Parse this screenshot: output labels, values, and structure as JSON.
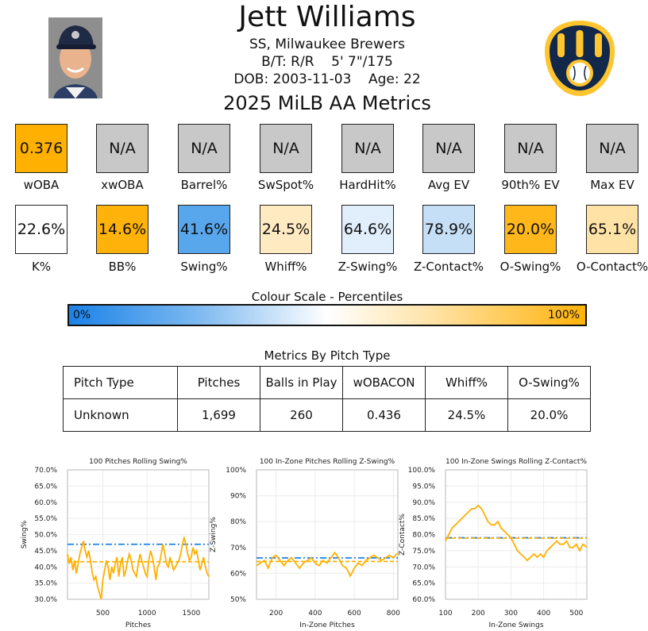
{
  "player": {
    "name": "Jett Williams",
    "position_team": "SS, Milwaukee Brewers",
    "bats_throws": "B/T: R/R    5' 7\"/175",
    "dob_age": "DOB: 2003-11-03    Age: 22",
    "season_title": "2025 MiLB AA Metrics"
  },
  "colors": {
    "na": "#c8c8c8",
    "high": "#ffb000",
    "blue": "#1c82e8",
    "orange": "#ffb000",
    "logo_navy": "#12284b",
    "logo_gold": "#ffc52f"
  },
  "metrics_row1": [
    {
      "label": "wOBA",
      "value": "0.376",
      "color": "#ffb000"
    },
    {
      "label": "xwOBA",
      "value": "N/A",
      "color": "#c8c8c8"
    },
    {
      "label": "Barrel%",
      "value": "N/A",
      "color": "#c8c8c8"
    },
    {
      "label": "SwSpot%",
      "value": "N/A",
      "color": "#c8c8c8"
    },
    {
      "label": "HardHit%",
      "value": "N/A",
      "color": "#c8c8c8"
    },
    {
      "label": "Avg EV",
      "value": "N/A",
      "color": "#c8c8c8"
    },
    {
      "label": "90th% EV",
      "value": "N/A",
      "color": "#c8c8c8"
    },
    {
      "label": "Max EV",
      "value": "N/A",
      "color": "#c8c8c8"
    }
  ],
  "metrics_row2": [
    {
      "label": "K%",
      "value": "22.6%",
      "color": "#ffffff"
    },
    {
      "label": "BB%",
      "value": "14.6%",
      "color": "#ffb20a"
    },
    {
      "label": "Swing%",
      "value": "41.6%",
      "color": "#58a6ec"
    },
    {
      "label": "Whiff%",
      "value": "24.5%",
      "color": "#ffeac2"
    },
    {
      "label": "Z-Swing%",
      "value": "64.6%",
      "color": "#e1eefb"
    },
    {
      "label": "Z-Contact%",
      "value": "78.9%",
      "color": "#c5dff6"
    },
    {
      "label": "O-Swing%",
      "value": "20.0%",
      "color": "#ffb719"
    },
    {
      "label": "O-Contact%",
      "value": "65.1%",
      "color": "#ffe3a6"
    }
  ],
  "colour_scale": {
    "title": "Colour Scale - Percentiles",
    "low": "0%",
    "high": "100%"
  },
  "pitch_table": {
    "title": "Metrics By Pitch Type",
    "headers": [
      "Pitch Type",
      "Pitches",
      "Balls in Play",
      "wOBACON",
      "Whiff%",
      "O-Swing%"
    ],
    "rows": [
      [
        "Unknown",
        "1,699",
        "260",
        "0.436",
        "24.5%",
        "20.0%"
      ]
    ]
  },
  "chart_data": [
    {
      "type": "line",
      "title": "100 Pitches Rolling Swing%",
      "xlabel": "Pitches",
      "ylabel": "Swing%",
      "xlim": [
        100,
        1699
      ],
      "ylim": [
        30,
        70
      ],
      "xticks": [
        500,
        1000,
        1500
      ],
      "xtick_labels": [
        "500",
        "1000",
        "1500"
      ],
      "yticks": [
        30,
        35,
        40,
        45,
        50,
        55,
        60,
        65,
        70
      ],
      "ytick_labels": [
        "30.0%",
        "35.0%",
        "40.0%",
        "45.0%",
        "50.0%",
        "55.0%",
        "60.0%",
        "65.0%",
        "70.0%"
      ],
      "league_avg": 47.0,
      "player_avg": 41.6,
      "x": [
        100,
        120,
        140,
        160,
        180,
        200,
        220,
        240,
        260,
        280,
        300,
        320,
        340,
        360,
        380,
        400,
        420,
        440,
        460,
        480,
        500,
        520,
        540,
        560,
        580,
        600,
        620,
        640,
        660,
        680,
        700,
        720,
        740,
        760,
        780,
        800,
        820,
        840,
        860,
        880,
        900,
        920,
        940,
        960,
        980,
        1000,
        1020,
        1040,
        1060,
        1080,
        1100,
        1120,
        1140,
        1160,
        1180,
        1200,
        1220,
        1240,
        1260,
        1280,
        1300,
        1320,
        1340,
        1360,
        1380,
        1400,
        1420,
        1440,
        1460,
        1480,
        1500,
        1520,
        1540,
        1560,
        1580,
        1600,
        1620,
        1640,
        1660,
        1680,
        1699
      ],
      "y": [
        44,
        41,
        43,
        39,
        42,
        38,
        41,
        44,
        46,
        48,
        45,
        43,
        45,
        42,
        38,
        36,
        37,
        34,
        32,
        30,
        36,
        39,
        42,
        40,
        36,
        40,
        38,
        41,
        43,
        37,
        41,
        43,
        37,
        39,
        42,
        44,
        42,
        39,
        38,
        37,
        41,
        44,
        42,
        40,
        38,
        37,
        42,
        45,
        43,
        40,
        36,
        40,
        41,
        44,
        47,
        44,
        41,
        40,
        43,
        41,
        39,
        40,
        41,
        42,
        44,
        47,
        49,
        47,
        44,
        42,
        43,
        46,
        44,
        45,
        42,
        39,
        41,
        43,
        40,
        38,
        37
      ]
    },
    {
      "type": "line",
      "title": "100 In-Zone Pitches Rolling Z-Swing%",
      "xlabel": "In-Zone Pitches",
      "ylabel": "Z-Swing%",
      "xlim": [
        100,
        823
      ],
      "ylim": [
        50,
        100
      ],
      "xticks": [
        200,
        400,
        600,
        800
      ],
      "xtick_labels": [
        "200",
        "400",
        "600",
        "800"
      ],
      "yticks": [
        50,
        60,
        70,
        80,
        90,
        100
      ],
      "ytick_labels": [
        "50%",
        "60%",
        "70%",
        "80%",
        "90%",
        "100%"
      ],
      "league_avg": 66.0,
      "player_avg": 64.6,
      "x": [
        100,
        120,
        140,
        160,
        180,
        200,
        220,
        240,
        260,
        280,
        300,
        320,
        340,
        360,
        380,
        400,
        420,
        440,
        460,
        480,
        500,
        520,
        540,
        560,
        580,
        600,
        620,
        640,
        660,
        680,
        700,
        720,
        740,
        760,
        780,
        800,
        823
      ],
      "y": [
        63,
        64,
        65,
        62,
        66,
        67,
        65,
        63,
        65,
        66,
        64,
        62,
        64,
        65,
        66,
        64,
        63,
        65,
        64,
        66,
        68,
        66,
        63,
        62,
        59,
        62,
        64,
        63,
        65,
        66,
        67,
        66,
        65,
        66,
        67,
        66,
        68
      ]
    },
    {
      "type": "line",
      "title": "100 In-Zone Swings Rolling Z-Contact%",
      "xlabel": "In-Zone Swings",
      "ylabel": "Z-Contact%",
      "xlim": [
        100,
        532
      ],
      "ylim": [
        60,
        100
      ],
      "xticks": [
        100,
        200,
        300,
        400,
        500
      ],
      "xtick_labels": [
        "100",
        "200",
        "300",
        "400",
        "500"
      ],
      "yticks": [
        60,
        65,
        70,
        75,
        80,
        85,
        90,
        95,
        100
      ],
      "ytick_labels": [
        "60.0%",
        "65.0%",
        "70.0%",
        "75.0%",
        "80.0%",
        "85.0%",
        "90.0%",
        "95.0%",
        "100.0%"
      ],
      "league_avg": 79.0,
      "player_avg": 78.9,
      "x": [
        100,
        110,
        120,
        130,
        140,
        150,
        160,
        170,
        180,
        190,
        200,
        210,
        220,
        230,
        240,
        250,
        260,
        270,
        280,
        290,
        300,
        310,
        320,
        330,
        340,
        350,
        360,
        370,
        380,
        390,
        400,
        410,
        420,
        430,
        440,
        450,
        460,
        470,
        480,
        490,
        500,
        510,
        520,
        532
      ],
      "y": [
        78,
        80,
        82,
        83,
        84,
        85,
        86,
        87,
        88,
        88,
        89,
        88,
        86,
        84,
        83,
        83,
        84,
        82,
        81,
        80,
        79,
        77,
        75,
        74,
        73,
        72,
        73,
        74,
        73,
        74,
        73,
        75,
        76,
        77,
        78,
        77,
        77,
        78,
        76,
        76,
        77,
        75,
        77,
        76
      ]
    }
  ]
}
